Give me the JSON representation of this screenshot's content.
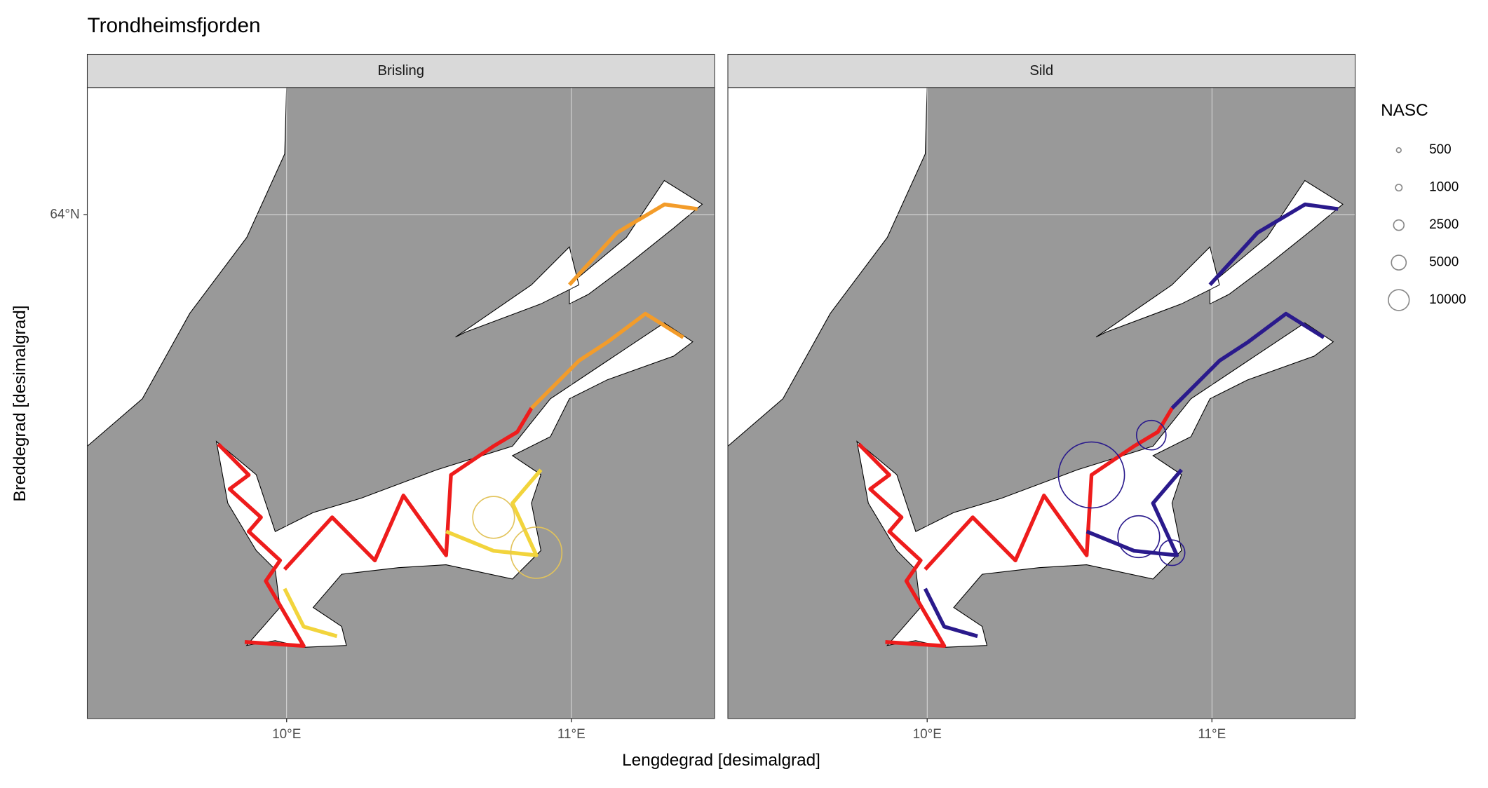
{
  "chart_data": {
    "type": "map",
    "title": "Trondheimsfjorden",
    "xlabel": "Lengdegrad [desimalgrad]",
    "ylabel": "Breddegrad  [desimalgrad]",
    "xlim": [
      9.3,
      11.503
    ],
    "ylim": [
      63.216,
      64.198
    ],
    "xticks": [
      {
        "value": 10,
        "label": "10°E"
      },
      {
        "value": 11,
        "label": "11°E"
      }
    ],
    "yticks": [
      {
        "value": 64,
        "label": "64°N"
      }
    ],
    "grid": true,
    "legend": {
      "title": "NASC",
      "values": [
        500,
        1000,
        2500,
        5000,
        10000
      ]
    },
    "panels": [
      {
        "title": "Brisling",
        "tracks": [
          {
            "color": "#ee1c1c",
            "x": [
              9.76,
              9.867,
              9.8,
              9.91,
              9.867,
              9.977,
              9.927,
              10.06,
              9.853
            ],
            "y": [
              63.643,
              63.595,
              63.573,
              63.529,
              63.507,
              63.462,
              63.43,
              63.329,
              63.335
            ]
          },
          {
            "color": "#ee1c1c",
            "x": [
              9.993,
              10.16,
              10.31,
              10.41,
              10.56,
              10.577,
              10.727,
              10.81,
              10.86
            ],
            "y": [
              63.448,
              63.529,
              63.462,
              63.563,
              63.47,
              63.595,
              63.64,
              63.662,
              63.699
            ]
          },
          {
            "color": "#f39c2a",
            "x": [
              10.86,
              11.027,
              11.127,
              11.26,
              11.393
            ],
            "y": [
              63.699,
              63.773,
              63.802,
              63.846,
              63.809
            ]
          },
          {
            "color": "#f39c2a",
            "x": [
              10.993,
              11.16,
              11.327,
              11.443
            ],
            "y": [
              63.891,
              63.972,
              64.016,
              64.009
            ]
          },
          {
            "color": "#f2d43c",
            "x": [
              10.56,
              10.727,
              10.877,
              10.793,
              10.893
            ],
            "y": [
              63.507,
              63.477,
              63.47,
              63.551,
              63.603
            ]
          },
          {
            "color": "#f2d43c",
            "x": [
              9.993,
              10.06,
              10.177
            ],
            "y": [
              63.418,
              63.359,
              63.344
            ]
          }
        ],
        "circles": [
          {
            "color": "#e2c35a",
            "x": 10.727,
            "y": 63.529,
            "size": 40000
          },
          {
            "color": "#e2c35a",
            "x": 10.877,
            "y": 63.474,
            "size": 60000
          }
        ]
      },
      {
        "title": "Sild",
        "tracks": [
          {
            "color": "#ee1c1c",
            "x": [
              9.76,
              9.867,
              9.8,
              9.91,
              9.867,
              9.977,
              9.927,
              10.06,
              9.853
            ],
            "y": [
              63.643,
              63.595,
              63.573,
              63.529,
              63.507,
              63.462,
              63.43,
              63.329,
              63.335
            ]
          },
          {
            "color": "#ee1c1c",
            "x": [
              9.993,
              10.16,
              10.31,
              10.41,
              10.56,
              10.577,
              10.727,
              10.81,
              10.86
            ],
            "y": [
              63.448,
              63.529,
              63.462,
              63.563,
              63.47,
              63.595,
              63.64,
              63.662,
              63.699
            ]
          },
          {
            "color": "#2a1a8c",
            "x": [
              10.86,
              11.027,
              11.127,
              11.26,
              11.393
            ],
            "y": [
              63.699,
              63.773,
              63.802,
              63.846,
              63.809
            ]
          },
          {
            "color": "#2a1a8c",
            "x": [
              10.993,
              11.16,
              11.327,
              11.443
            ],
            "y": [
              63.891,
              63.972,
              64.016,
              64.009
            ]
          },
          {
            "color": "#2a1a8c",
            "x": [
              10.56,
              10.727,
              10.877,
              10.793,
              10.893
            ],
            "y": [
              63.507,
              63.477,
              63.47,
              63.551,
              63.603
            ]
          },
          {
            "color": "#2a1a8c",
            "x": [
              9.993,
              10.06,
              10.177
            ],
            "y": [
              63.418,
              63.359,
              63.344
            ]
          }
        ],
        "circles": [
          {
            "color": "#2a1a8c",
            "x": 10.577,
            "y": 63.595,
            "size": 100000
          },
          {
            "color": "#2a1a8c",
            "x": 10.787,
            "y": 63.657,
            "size": 20000
          },
          {
            "color": "#2a1a8c",
            "x": 10.86,
            "y": 63.474,
            "size": 15000
          },
          {
            "color": "#2a1a8c",
            "x": 10.743,
            "y": 63.499,
            "size": 40000
          }
        ]
      }
    ]
  }
}
